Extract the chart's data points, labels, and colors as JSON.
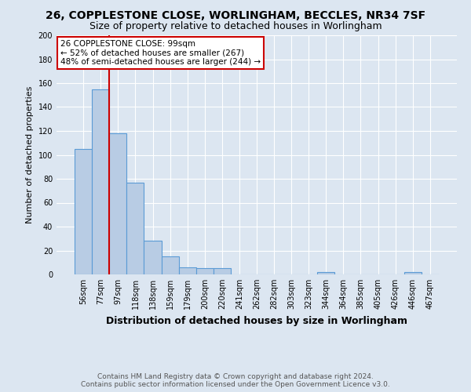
{
  "title": "26, COPPLESTONE CLOSE, WORLINGHAM, BECCLES, NR34 7SF",
  "subtitle": "Size of property relative to detached houses in Worlingham",
  "xlabel": "Distribution of detached houses by size in Worlingham",
  "ylabel": "Number of detached properties",
  "footer1": "Contains HM Land Registry data © Crown copyright and database right 2024.",
  "footer2": "Contains public sector information licensed under the Open Government Licence v3.0.",
  "categories": [
    "56sqm",
    "77sqm",
    "97sqm",
    "118sqm",
    "138sqm",
    "159sqm",
    "179sqm",
    "200sqm",
    "220sqm",
    "241sqm",
    "262sqm",
    "282sqm",
    "303sqm",
    "323sqm",
    "344sqm",
    "364sqm",
    "385sqm",
    "405sqm",
    "426sqm",
    "446sqm",
    "467sqm"
  ],
  "values": [
    105,
    155,
    118,
    77,
    28,
    15,
    6,
    5,
    5,
    0,
    0,
    0,
    0,
    0,
    2,
    0,
    0,
    0,
    0,
    2,
    0
  ],
  "bar_color": "#b8cce4",
  "bar_edge_color": "#5b9bd5",
  "background_color": "#dce6f1",
  "plot_bg_color": "#dce6f1",
  "grid_color": "#ffffff",
  "red_line_index": 1.5,
  "red_line_color": "#cc0000",
  "annotation_line1": "26 COPPLESTONE CLOSE: 99sqm",
  "annotation_line2": "← 52% of detached houses are smaller (267)",
  "annotation_line3": "48% of semi-detached houses are larger (244) →",
  "annotation_box_color": "#cc0000",
  "ylim": [
    0,
    200
  ],
  "yticks": [
    0,
    20,
    40,
    60,
    80,
    100,
    120,
    140,
    160,
    180,
    200
  ],
  "title_fontsize": 10,
  "subtitle_fontsize": 9,
  "ylabel_fontsize": 8,
  "xlabel_fontsize": 9,
  "tick_fontsize": 7,
  "footer_fontsize": 6.5
}
